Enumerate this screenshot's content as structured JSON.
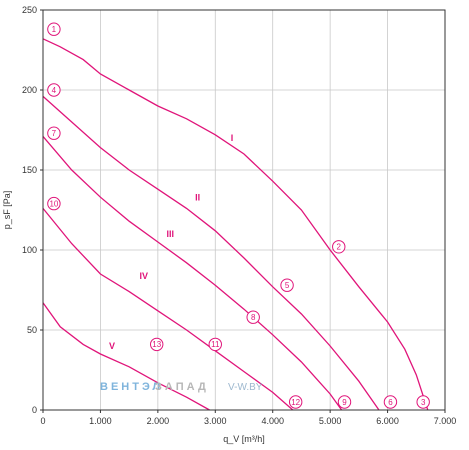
{
  "chart_data": {
    "type": "line",
    "xlabel": "q_V [m³/h]",
    "ylabel": "p_sF [Pa]",
    "xlim": [
      0,
      7000
    ],
    "ylim": [
      0,
      250
    ],
    "x_ticks": [
      0,
      1000,
      2000,
      3000,
      4000,
      5000,
      6000,
      7000
    ],
    "x_tick_labels": [
      "0",
      "1.000",
      "2.000",
      "3.000",
      "4.000",
      "5.000",
      "6.000",
      "7.000"
    ],
    "y_ticks": [
      0,
      50,
      100,
      150,
      200,
      250
    ],
    "y_tick_labels": [
      "0",
      "50",
      "100",
      "150",
      "200",
      "250"
    ],
    "grid": true,
    "series": [
      {
        "name": "I",
        "x": [
          0,
          300,
          700,
          1000,
          1500,
          2000,
          2500,
          3000,
          3500,
          4000,
          4500,
          5000,
          5500,
          6000,
          6300,
          6500,
          6700
        ],
        "y": [
          232,
          227,
          219,
          210,
          200,
          190,
          182,
          172,
          160,
          143,
          125,
          100,
          77,
          55,
          38,
          22,
          0
        ]
      },
      {
        "name": "II",
        "x": [
          0,
          500,
          1000,
          1500,
          2000,
          2500,
          3000,
          3500,
          4000,
          4500,
          5000,
          5500,
          5850
        ],
        "y": [
          196,
          180,
          164,
          150,
          138,
          126,
          112,
          95,
          77,
          60,
          40,
          18,
          0
        ]
      },
      {
        "name": "III",
        "x": [
          0,
          500,
          1000,
          1500,
          2000,
          2500,
          3000,
          3500,
          4000,
          4500,
          5000,
          5200
        ],
        "y": [
          171,
          150,
          133,
          118,
          105,
          92,
          78,
          63,
          47,
          30,
          10,
          0
        ]
      },
      {
        "name": "IV",
        "x": [
          0,
          500,
          1000,
          1500,
          2000,
          2500,
          3000,
          3500,
          4000,
          4350
        ],
        "y": [
          126,
          104,
          85,
          74,
          62,
          50,
          37,
          24,
          11,
          0
        ]
      },
      {
        "name": "V",
        "x": [
          0,
          300,
          700,
          1000,
          1500,
          2000,
          2500,
          2900
        ],
        "y": [
          67,
          52,
          41,
          35,
          27,
          17,
          8,
          0
        ]
      }
    ],
    "curve_labels": [
      "I",
      "II",
      "III",
      "IV",
      "V"
    ],
    "curve_label_positions": [
      [
        3270,
        168
      ],
      [
        2650,
        131
      ],
      [
        2150,
        108
      ],
      [
        1680,
        82
      ],
      [
        1150,
        38
      ]
    ],
    "circled_markers": [
      {
        "label": "1",
        "x": 190,
        "y": 238
      },
      {
        "label": "4",
        "x": 190,
        "y": 200
      },
      {
        "label": "7",
        "x": 190,
        "y": 173
      },
      {
        "label": "10",
        "x": 190,
        "y": 129
      },
      {
        "label": "13",
        "x": 1980,
        "y": 41
      },
      {
        "label": "2",
        "x": 5150,
        "y": 102
      },
      {
        "label": "5",
        "x": 4250,
        "y": 78
      },
      {
        "label": "8",
        "x": 3660,
        "y": 58
      },
      {
        "label": "11",
        "x": 3000,
        "y": 41
      },
      {
        "label": "12",
        "x": 4400,
        "y": 5
      },
      {
        "label": "9",
        "x": 5250,
        "y": 5
      },
      {
        "label": "6",
        "x": 6050,
        "y": 5
      },
      {
        "label": "3",
        "x": 6620,
        "y": 5
      }
    ],
    "watermark": [
      "ВЕНТЭЛ",
      "ЗАПАД",
      "V-W.BY"
    ]
  }
}
